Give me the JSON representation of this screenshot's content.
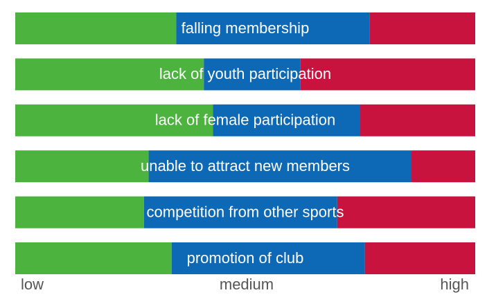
{
  "chart_data": {
    "type": "stacked-bar-horizontal",
    "categories": [
      "falling membership",
      "lack of youth participation",
      "lack of female participation",
      "unable to attract new members",
      "competition from other sports",
      "promotion of club"
    ],
    "series": [
      {
        "name": "low",
        "color": "#4cb33e",
        "values": [
          35,
          41,
          43,
          29,
          28,
          34
        ]
      },
      {
        "name": "medium",
        "color": "#0d68b5",
        "values": [
          42,
          21,
          32,
          57,
          42,
          42
        ]
      },
      {
        "name": "high",
        "color": "#c9133f",
        "values": [
          23,
          38,
          25,
          14,
          30,
          24
        ]
      }
    ]
  }
}
